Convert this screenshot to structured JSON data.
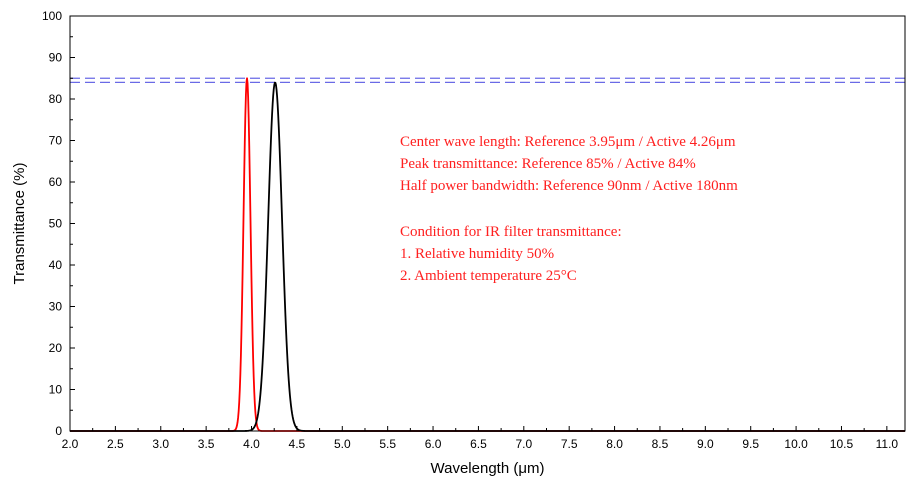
{
  "chart_data": {
    "type": "line",
    "title": "",
    "xlabel": "Wavelength (μm)",
    "ylabel": "Transmittance (%)",
    "xlim": [
      2.0,
      11.2
    ],
    "ylim": [
      0,
      100
    ],
    "x_ticks": [
      "2.0",
      "2.5",
      "3.0",
      "3.5",
      "4.0",
      "4.5",
      "5.0",
      "5.5",
      "6.0",
      "6.5",
      "7.0",
      "7.5",
      "8.0",
      "8.5",
      "9.0",
      "9.5",
      "10.0",
      "10.5",
      "11.0"
    ],
    "y_ticks": [
      "0",
      "10",
      "20",
      "30",
      "40",
      "50",
      "60",
      "70",
      "80",
      "90",
      "100"
    ],
    "grid": false,
    "colors": {
      "reference": "#ff0000",
      "active": "#000000",
      "reference_lines": "#6a6ae6"
    },
    "series": [
      {
        "key": "reference",
        "center": 3.95,
        "peak": 85,
        "fwhm": 0.09
      },
      {
        "key": "active",
        "center": 4.26,
        "peak": 84,
        "fwhm": 0.18
      }
    ],
    "reference_lines": [
      {
        "y": 85,
        "style": "dashed"
      },
      {
        "y": 84,
        "style": "dashed"
      }
    ],
    "annotations": {
      "group1": [
        "Center wave length: Reference 3.95μm / Active 4.26μm",
        "Peak transmittance: Reference 85% / Active 84%",
        "Half power bandwidth: Reference 90nm / Active 180nm"
      ],
      "group2": [
        "Condition for IR filter transmittance:",
        "1. Relative humidity 50%",
        "2. Ambient temperature 25°C"
      ]
    }
  }
}
